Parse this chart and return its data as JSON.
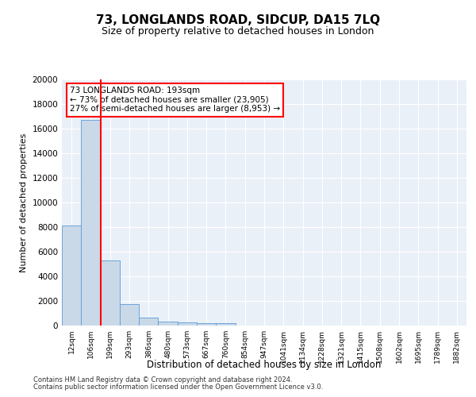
{
  "title": "73, LONGLANDS ROAD, SIDCUP, DA15 7LQ",
  "subtitle": "Size of property relative to detached houses in London",
  "xlabel": "Distribution of detached houses by size in London",
  "ylabel": "Number of detached properties",
  "annotation_line1": "73 LONGLANDS ROAD: 193sqm",
  "annotation_line2": "← 73% of detached houses are smaller (23,905)",
  "annotation_line3": "27% of semi-detached houses are larger (8,953) →",
  "bar_color": "#c9d9e8",
  "bar_edge_color": "#5b9bd5",
  "highlight_line_color": "#ff0000",
  "annotation_box_edge_color": "#ff0000",
  "annotation_box_face_color": "#ffffff",
  "background_color": "#eaf0f8",
  "grid_color": "#ffffff",
  "categories": [
    "12sqm",
    "106sqm",
    "199sqm",
    "293sqm",
    "386sqm",
    "480sqm",
    "573sqm",
    "667sqm",
    "760sqm",
    "854sqm",
    "947sqm",
    "1041sqm",
    "1134sqm",
    "1228sqm",
    "1321sqm",
    "1415sqm",
    "1508sqm",
    "1602sqm",
    "1695sqm",
    "1789sqm",
    "1882sqm"
  ],
  "values": [
    8100,
    16700,
    5300,
    1750,
    650,
    350,
    275,
    200,
    175,
    0,
    0,
    0,
    0,
    0,
    0,
    0,
    0,
    0,
    0,
    0,
    0
  ],
  "ylim": [
    0,
    20000
  ],
  "yticks": [
    0,
    2000,
    4000,
    6000,
    8000,
    10000,
    12000,
    14000,
    16000,
    18000,
    20000
  ],
  "property_bin_index": 2,
  "footer_line1": "Contains HM Land Registry data © Crown copyright and database right 2024.",
  "footer_line2": "Contains public sector information licensed under the Open Government Licence v3.0."
}
